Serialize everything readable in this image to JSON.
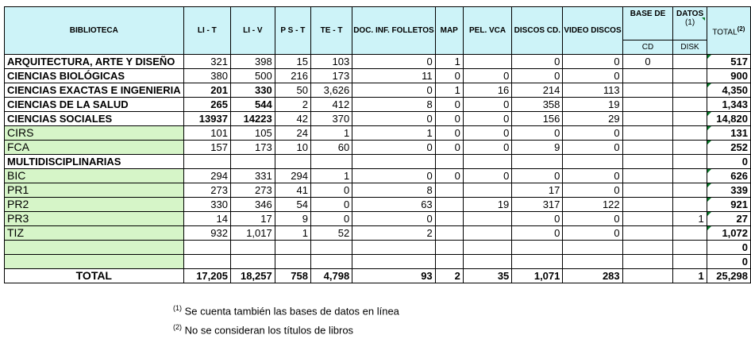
{
  "headers": {
    "biblioteca": "BIBLIOTECA",
    "lit": "LI - T",
    "liv": "LI - V",
    "pst": "P S  - T",
    "tet": "TE - T",
    "doc": "DOC. INF. FOLLETOS",
    "map": "MAP",
    "pel": "PEL. VCA",
    "discos": "DISCOS CD.",
    "video": "VIDEO DISCOS",
    "base_de": "BASE DE",
    "datos": "DATOS",
    "datos_note": "(1)",
    "cd": "CD",
    "disk": "DISK",
    "total": "TOTAL",
    "total_note": "(2)"
  },
  "rows": [
    {
      "name": "ARQUITECTURA, ARTE Y DISEÑO",
      "lit": "321",
      "liv": "398",
      "pst": "15",
      "tet": "103",
      "doc": "0",
      "map": "1",
      "pel": "",
      "discos": "0",
      "video": "0",
      "cd": "0",
      "disk": "",
      "total": "517"
    },
    {
      "name": "CIENCIAS BIOLÓGICAS",
      "lit": "380",
      "liv": "500",
      "pst": "216",
      "tet": "173",
      "doc": "11",
      "map": "0",
      "pel": "0",
      "discos": "0",
      "video": "0",
      "cd": "",
      "disk": "",
      "total": "900"
    },
    {
      "name": "CIENCIAS EXACTAS E INGENIERIA",
      "lit": "201",
      "liv": "330",
      "pst": "50",
      "tet": "3,626",
      "doc": "0",
      "map": "1",
      "pel": "16",
      "discos": "214",
      "video": "113",
      "cd": "",
      "disk": "",
      "total": "4,350"
    },
    {
      "name": "CIENCIAS DE LA SALUD",
      "lit": "265",
      "liv": "544",
      "pst": "2",
      "tet": "412",
      "doc": "8",
      "map": "0",
      "pel": "0",
      "discos": "358",
      "video": "19",
      "cd": "",
      "disk": "",
      "total": "1,343"
    },
    {
      "name": "CIENCIAS SOCIALES",
      "lit": "13937",
      "liv": "14223",
      "pst": "42",
      "tet": "370",
      "doc": "0",
      "map": "0",
      "pel": "0",
      "discos": "156",
      "video": "29",
      "cd": "",
      "disk": "",
      "total": "14,820"
    },
    {
      "name": "CIRS",
      "lit": "101",
      "liv": "105",
      "pst": "24",
      "tet": "1",
      "doc": "1",
      "map": "0",
      "pel": "0",
      "discos": "0",
      "video": "0",
      "cd": "",
      "disk": "",
      "total": "131"
    },
    {
      "name": "FCA",
      "lit": "157",
      "liv": "173",
      "pst": "10",
      "tet": "60",
      "doc": "0",
      "map": "0",
      "pel": "0",
      "discos": "9",
      "video": "0",
      "cd": "",
      "disk": "",
      "total": "252"
    },
    {
      "name": "MULTIDISCIPLINARIAS",
      "lit": "",
      "liv": "",
      "pst": "",
      "tet": "",
      "doc": "",
      "map": "",
      "pel": "",
      "discos": "",
      "video": "",
      "cd": "",
      "disk": "",
      "total": "0"
    },
    {
      "name": "BIC",
      "lit": "294",
      "liv": "331",
      "pst": "294",
      "tet": "1",
      "doc": "0",
      "map": "0",
      "pel": "0",
      "discos": "0",
      "video": "0",
      "cd": "",
      "disk": "",
      "total": "626"
    },
    {
      "name": "PR1",
      "lit": "273",
      "liv": "273",
      "pst": "41",
      "tet": "0",
      "doc": "8",
      "map": "",
      "pel": "",
      "discos": "17",
      "video": "0",
      "cd": "",
      "disk": "",
      "total": "339"
    },
    {
      "name": "PR2",
      "lit": "330",
      "liv": "346",
      "pst": "54",
      "tet": "0",
      "doc": "63",
      "map": "",
      "pel": "19",
      "discos": "317",
      "video": "122",
      "cd": "",
      "disk": "",
      "total": "921"
    },
    {
      "name": "PR3",
      "lit": "14",
      "liv": "17",
      "pst": "9",
      "tet": "0",
      "doc": "0",
      "map": "",
      "pel": "",
      "discos": "0",
      "video": "0",
      "cd": "",
      "disk": "1",
      "total": "27"
    },
    {
      "name": "TIZ",
      "lit": "932",
      "liv": "1,017",
      "pst": "1",
      "tet": "52",
      "doc": "2",
      "map": "",
      "pel": "",
      "discos": "0",
      "video": "0",
      "cd": "",
      "disk": "",
      "total": "1,072"
    },
    {
      "name": "",
      "lit": "",
      "liv": "",
      "pst": "",
      "tet": "",
      "doc": "",
      "map": "",
      "pel": "",
      "discos": "",
      "video": "",
      "cd": "",
      "disk": "",
      "total": "0"
    },
    {
      "name": "",
      "lit": "",
      "liv": "",
      "pst": "",
      "tet": "",
      "doc": "",
      "map": "",
      "pel": "",
      "discos": "",
      "video": "",
      "cd": "",
      "disk": "",
      "total": "0"
    }
  ],
  "totals": {
    "label": "TOTAL",
    "lit": "17,205",
    "liv": "18,257",
    "pst": "758",
    "tet": "4,798",
    "doc": "93",
    "map": "2",
    "pel": "35",
    "discos": "1,071",
    "video": "283",
    "cd": "",
    "disk": "1",
    "total": "25,298"
  },
  "notes": [
    {
      "mark": "(1)",
      "text": " Se cuenta también las bases de datos  en línea"
    },
    {
      "mark": "(2)",
      "text": " No se consideran los títulos de libros"
    }
  ],
  "colors": {
    "header_bg": "#cdf3f8",
    "green_bg": "#d6f5c8",
    "comment_marker": "#0a7a2a"
  }
}
